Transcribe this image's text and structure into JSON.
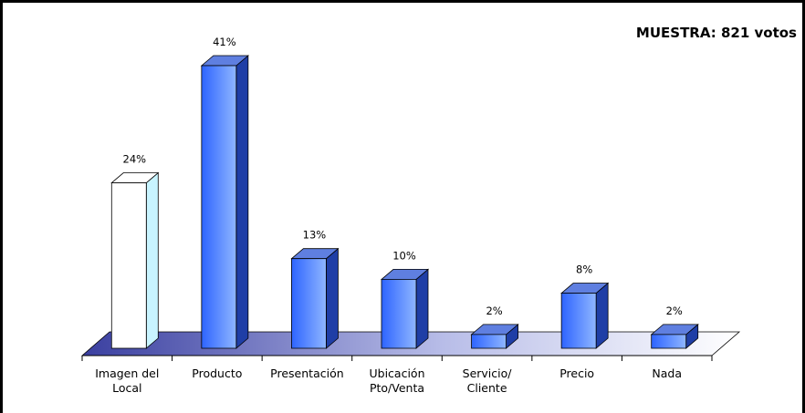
{
  "sample_label": "MUESTRA: 821 votos",
  "chart_data": {
    "type": "bar",
    "categories": [
      [
        "Imagen del",
        "Local"
      ],
      [
        "Producto"
      ],
      [
        "Presentación"
      ],
      [
        "Ubicación",
        "Pto/Venta"
      ],
      [
        "Servicio/",
        "Cliente"
      ],
      [
        "Precio"
      ],
      [
        "Nada"
      ]
    ],
    "values": [
      24,
      41,
      13,
      10,
      2,
      8,
      2
    ],
    "data_labels": [
      "24%",
      "41%",
      "13%",
      "10%",
      "2%",
      "8%",
      "2%"
    ],
    "highlight_index": 0,
    "style": "3d-column",
    "colors": {
      "bar_front_light": "#8fb6ff",
      "bar_front_dark": "#2e64ff",
      "bar_top": "#5f7fe0",
      "bar_side": "#1f3ea6",
      "highlight_front": "#ffffff",
      "highlight_side": "#c8f4ff",
      "floor_dark": "#3a3fa0",
      "floor_light": "#ffffff"
    },
    "grid": false,
    "legend": "none"
  }
}
